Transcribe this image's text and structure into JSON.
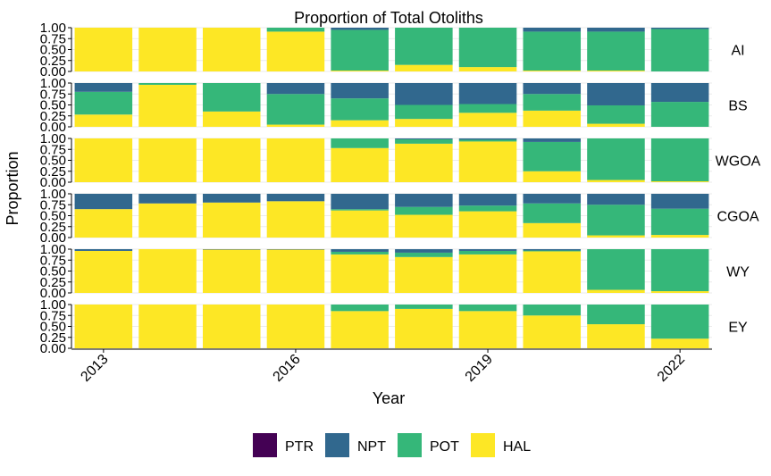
{
  "chart_data": {
    "type": "bar",
    "stacked": true,
    "title": "Proportion of Total Otoliths",
    "xlabel": "Year",
    "ylabel": "Proportion",
    "ylim": [
      0,
      1
    ],
    "y_ticks": [
      "0.00",
      "0.25",
      "0.50",
      "0.75",
      "1.00"
    ],
    "x_tick_labels": [
      "2013",
      "2016",
      "2019",
      "2022"
    ],
    "categories": [
      "2013",
      "2014",
      "2015",
      "2016",
      "2017",
      "2018",
      "2019",
      "2020",
      "2021",
      "2022"
    ],
    "legend": {
      "position": "bottom",
      "entries": [
        {
          "name": "PTR",
          "color": "#440154"
        },
        {
          "name": "NPT",
          "color": "#31688e"
        },
        {
          "name": "POT",
          "color": "#35b779"
        },
        {
          "name": "HAL",
          "color": "#fde725"
        }
      ]
    },
    "stack_order": [
      "HAL",
      "POT",
      "NPT",
      "PTR"
    ],
    "facets": [
      {
        "name": "AI",
        "series": {
          "HAL": [
            1.0,
            1.0,
            1.0,
            0.91,
            0.02,
            0.15,
            0.1,
            0.02,
            0.02,
            0.0
          ],
          "POT": [
            0.0,
            0.0,
            0.0,
            0.09,
            0.93,
            0.85,
            0.9,
            0.89,
            0.89,
            0.97
          ],
          "NPT": [
            0.0,
            0.0,
            0.0,
            0.0,
            0.05,
            0.0,
            0.0,
            0.09,
            0.09,
            0.03
          ],
          "PTR": [
            0,
            0,
            0,
            0,
            0,
            0,
            0,
            0,
            0,
            0
          ]
        }
      },
      {
        "name": "BS",
        "series": {
          "HAL": [
            0.28,
            0.96,
            0.35,
            0.05,
            0.15,
            0.18,
            0.32,
            0.37,
            0.07,
            0.0
          ],
          "POT": [
            0.52,
            0.04,
            0.65,
            0.7,
            0.5,
            0.32,
            0.2,
            0.38,
            0.42,
            0.57
          ],
          "NPT": [
            0.2,
            0.0,
            0.0,
            0.25,
            0.35,
            0.5,
            0.48,
            0.25,
            0.51,
            0.43
          ],
          "PTR": [
            0,
            0,
            0,
            0,
            0,
            0,
            0,
            0,
            0,
            0
          ]
        }
      },
      {
        "name": "WGOA",
        "series": {
          "HAL": [
            1.0,
            1.0,
            1.0,
            1.0,
            0.78,
            0.88,
            0.93,
            0.25,
            0.05,
            0.02
          ],
          "POT": [
            0.0,
            0.0,
            0.0,
            0.0,
            0.22,
            0.1,
            0.04,
            0.67,
            0.95,
            0.98
          ],
          "NPT": [
            0.0,
            0.0,
            0.0,
            0.0,
            0.0,
            0.02,
            0.03,
            0.08,
            0.0,
            0.0
          ],
          "PTR": [
            0,
            0,
            0,
            0,
            0,
            0,
            0,
            0,
            0,
            0
          ]
        }
      },
      {
        "name": "CGOA",
        "series": {
          "HAL": [
            0.65,
            0.78,
            0.8,
            0.83,
            0.62,
            0.52,
            0.6,
            0.33,
            0.05,
            0.06
          ],
          "POT": [
            0.0,
            0.0,
            0.0,
            0.0,
            0.03,
            0.18,
            0.13,
            0.45,
            0.7,
            0.6
          ],
          "NPT": [
            0.35,
            0.22,
            0.2,
            0.17,
            0.35,
            0.3,
            0.27,
            0.22,
            0.25,
            0.34
          ],
          "PTR": [
            0,
            0,
            0,
            0,
            0,
            0,
            0,
            0,
            0,
            0
          ]
        }
      },
      {
        "name": "WY",
        "series": {
          "HAL": [
            0.96,
            1.0,
            0.99,
            0.99,
            0.88,
            0.82,
            0.88,
            0.95,
            0.07,
            0.04
          ],
          "POT": [
            0.0,
            0.0,
            0.0,
            0.0,
            0.06,
            0.1,
            0.08,
            0.02,
            0.93,
            0.96
          ],
          "NPT": [
            0.04,
            0.0,
            0.01,
            0.01,
            0.06,
            0.08,
            0.04,
            0.03,
            0.0,
            0.0
          ],
          "PTR": [
            0,
            0,
            0,
            0,
            0,
            0,
            0,
            0,
            0,
            0
          ]
        }
      },
      {
        "name": "EY",
        "series": {
          "HAL": [
            1.0,
            1.0,
            1.0,
            1.0,
            0.85,
            0.9,
            0.85,
            0.75,
            0.55,
            0.22
          ],
          "POT": [
            0.0,
            0.0,
            0.0,
            0.0,
            0.15,
            0.1,
            0.15,
            0.25,
            0.45,
            0.78
          ],
          "NPT": [
            0,
            0,
            0,
            0,
            0,
            0,
            0,
            0,
            0,
            0
          ],
          "PTR": [
            0,
            0,
            0,
            0,
            0,
            0,
            0,
            0,
            0,
            0
          ]
        }
      }
    ]
  }
}
